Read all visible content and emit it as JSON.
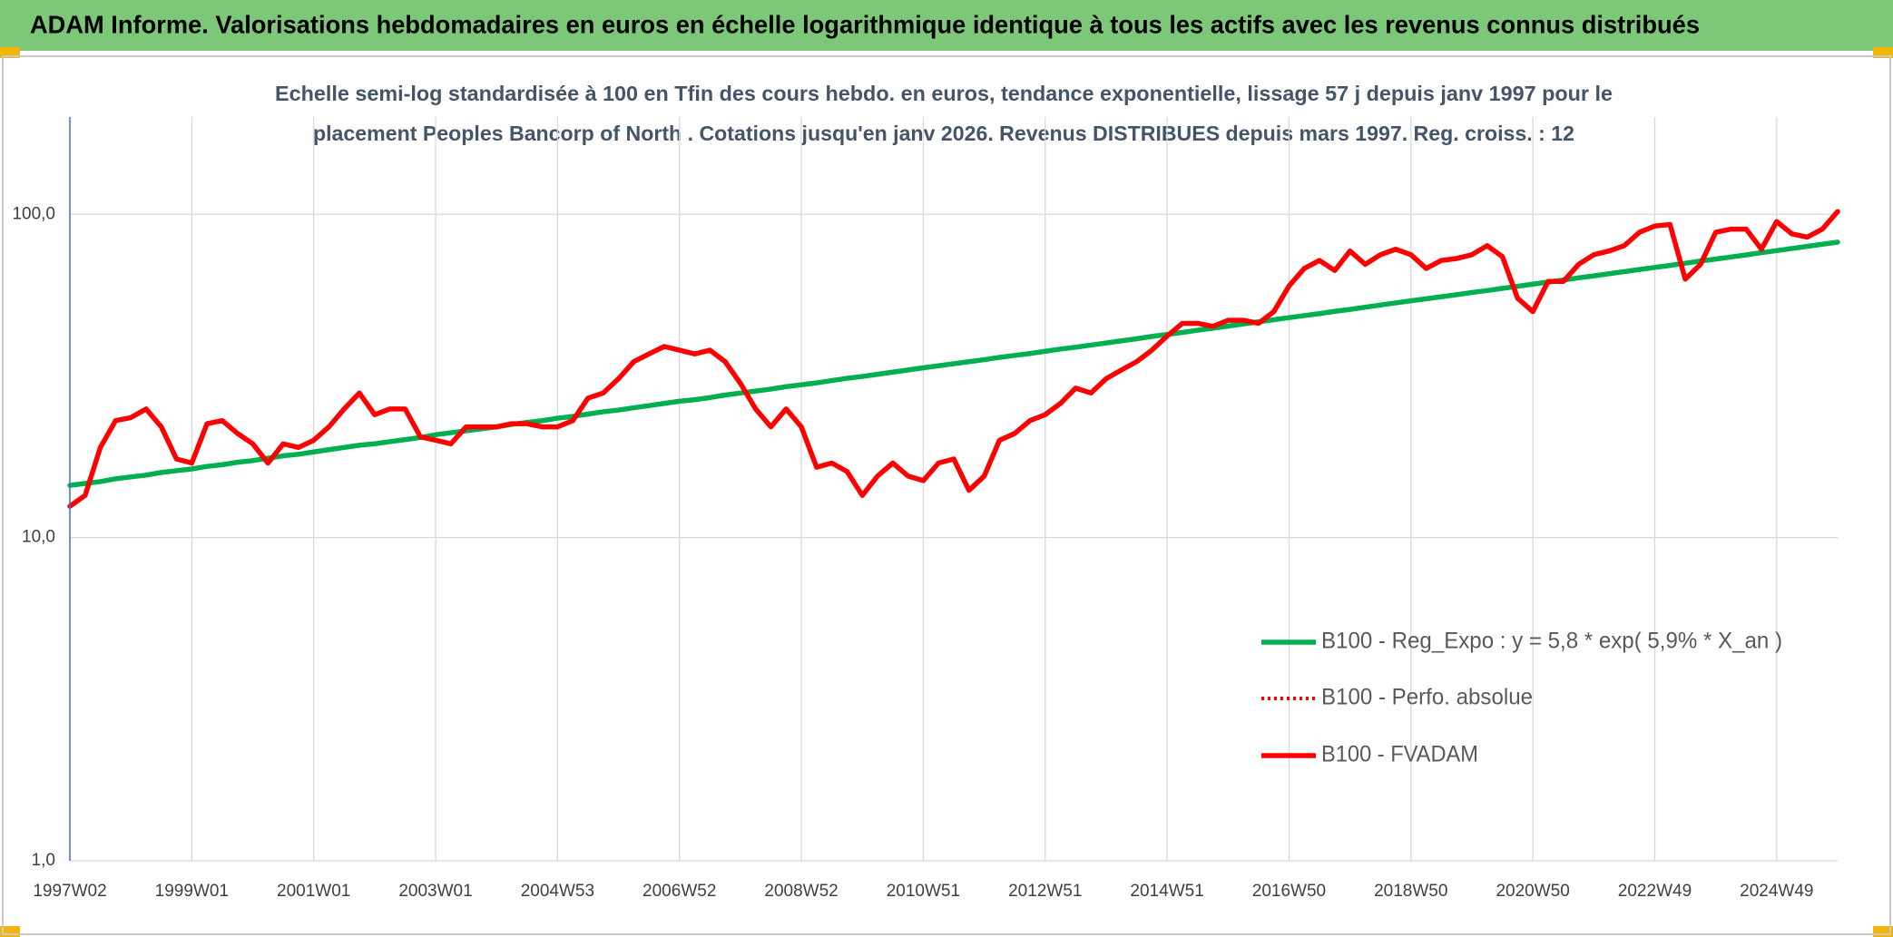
{
  "chart_data": {
    "type": "line",
    "title": "ADAM Informe. Valorisations hebdomadaires en euros en échelle logarithmique identique à tous les actifs avec les revenus connus distribués",
    "subtitle": [
      "Echelle semi-log standardisée à 100 en Tfin des cours hebdo. en euros, tendance exponentielle, lissage 57 j depuis janv 1997 pour le",
      "placement Peoples Bancorp of North . Cotations jusqu'en janv 2026. Revenus DISTRIBUES depuis mars 1997. Reg. croiss. : 12"
    ],
    "log_scale": true,
    "grid": true,
    "legend": "center right",
    "ylim": [
      1,
      200
    ],
    "yticks": [
      {
        "value": 1,
        "label": "1,0"
      },
      {
        "value": 10,
        "label": "10,0"
      },
      {
        "value": 100,
        "label": "100,0"
      }
    ],
    "categories": [
      "1997W02",
      null,
      null,
      null,
      null,
      null,
      null,
      null,
      "1999W01",
      null,
      null,
      null,
      null,
      null,
      null,
      null,
      "2001W01",
      null,
      null,
      null,
      null,
      null,
      null,
      null,
      "2003W01",
      null,
      null,
      null,
      null,
      null,
      null,
      null,
      "2004W53",
      null,
      null,
      null,
      null,
      null,
      null,
      null,
      "2006W52",
      null,
      null,
      null,
      null,
      null,
      null,
      null,
      "2008W52",
      null,
      null,
      null,
      null,
      null,
      null,
      null,
      "2010W51",
      null,
      null,
      null,
      null,
      null,
      null,
      null,
      "2012W51",
      null,
      null,
      null,
      null,
      null,
      null,
      null,
      "2014W51",
      null,
      null,
      null,
      null,
      null,
      null,
      null,
      "2016W50",
      null,
      null,
      null,
      null,
      null,
      null,
      null,
      "2018W50",
      null,
      null,
      null,
      null,
      null,
      null,
      null,
      "2020W50",
      null,
      null,
      null,
      null,
      null,
      null,
      null,
      "2022W49",
      null,
      null,
      null,
      null,
      null,
      null,
      null,
      "2024W49",
      null,
      null,
      null,
      null
    ],
    "series": [
      {
        "name": "B100 - Reg_Expo : y = 5,8 * exp( 5,9% *  X_an )",
        "color": "#00b050",
        "style": "solid",
        "values": [
          14.5,
          14.7,
          14.9,
          15.2,
          15.4,
          15.6,
          15.9,
          16.1,
          16.3,
          16.6,
          16.8,
          17.1,
          17.3,
          17.6,
          17.9,
          18.1,
          18.4,
          18.7,
          19.0,
          19.3,
          19.5,
          19.8,
          20.1,
          20.4,
          20.8,
          21.1,
          21.4,
          21.7,
          22.0,
          22.4,
          22.7,
          23.0,
          23.4,
          23.7,
          24.1,
          24.5,
          24.8,
          25.2,
          25.6,
          26.0,
          26.4,
          26.7,
          27.1,
          27.6,
          28.0,
          28.4,
          28.8,
          29.3,
          29.7,
          30.1,
          30.6,
          31.1,
          31.5,
          32.0,
          32.5,
          33.0,
          33.5,
          34.0,
          34.5,
          35.0,
          35.5,
          36.1,
          36.6,
          37.1,
          37.7,
          38.3,
          38.8,
          39.4,
          40.0,
          40.6,
          41.2,
          41.9,
          42.5,
          43.1,
          43.8,
          44.4,
          45.1,
          45.8,
          46.5,
          47.2,
          47.9,
          48.6,
          49.3,
          50.1,
          50.8,
          51.6,
          52.4,
          53.2,
          54.0,
          54.8,
          55.6,
          56.4,
          57.3,
          58.1,
          59.0,
          59.9,
          60.8,
          61.7,
          62.6,
          63.6,
          64.5,
          65.5,
          66.5,
          67.5,
          68.5,
          69.5,
          70.6,
          71.7,
          72.7,
          73.8,
          74.9,
          76.1,
          77.2,
          78.4,
          79.6,
          80.8,
          82.0
        ]
      },
      {
        "name": "B100 - Perfo. absolue",
        "color": "#ff0000",
        "style": "dotted",
        "values": [
          12.5,
          13.5,
          19,
          23,
          23.5,
          25,
          22,
          17.5,
          17,
          22.5,
          23,
          21,
          19.5,
          17,
          19.5,
          19,
          20,
          22,
          25,
          28,
          24,
          25,
          25,
          20.5,
          20,
          19.5,
          22,
          22,
          22,
          22.5,
          22.5,
          22,
          22,
          23,
          27,
          28,
          31,
          35,
          37,
          39,
          38,
          37,
          38,
          35,
          30,
          25,
          22,
          25,
          22,
          16.5,
          17,
          16,
          13.5,
          15.5,
          17,
          15.5,
          15,
          17,
          17.5,
          14,
          15.5,
          20,
          21,
          23,
          24,
          26,
          29,
          28,
          31,
          33,
          35,
          38,
          42,
          46,
          46,
          45,
          47,
          47,
          46,
          50,
          60,
          68,
          72,
          67,
          77,
          70,
          75,
          78,
          75,
          68,
          72,
          73,
          75,
          80,
          74,
          55,
          50,
          62,
          62,
          70,
          75,
          77,
          80,
          88,
          92,
          93,
          63,
          70,
          88,
          90,
          90,
          78,
          95,
          87,
          85,
          90,
          102
        ]
      },
      {
        "name": "B100 - FVADAM",
        "color": "#ff0000",
        "style": "solid",
        "values": [
          12.5,
          13.5,
          19,
          23,
          23.5,
          25,
          22,
          17.5,
          17,
          22.5,
          23,
          21,
          19.5,
          17,
          19.5,
          19,
          20,
          22,
          25,
          28,
          24,
          25,
          25,
          20.5,
          20,
          19.5,
          22,
          22,
          22,
          22.5,
          22.5,
          22,
          22,
          23,
          27,
          28,
          31,
          35,
          37,
          39,
          38,
          37,
          38,
          35,
          30,
          25,
          22,
          25,
          22,
          16.5,
          17,
          16,
          13.5,
          15.5,
          17,
          15.5,
          15,
          17,
          17.5,
          14,
          15.5,
          20,
          21,
          23,
          24,
          26,
          29,
          28,
          31,
          33,
          35,
          38,
          42,
          46,
          46,
          45,
          47,
          47,
          46,
          50,
          60,
          68,
          72,
          67,
          77,
          70,
          75,
          78,
          75,
          68,
          72,
          73,
          75,
          80,
          74,
          55,
          50,
          62,
          62,
          70,
          75,
          77,
          80,
          88,
          92,
          93,
          63,
          70,
          88,
          90,
          90,
          78,
          95,
          87,
          85,
          90,
          102
        ]
      }
    ]
  }
}
